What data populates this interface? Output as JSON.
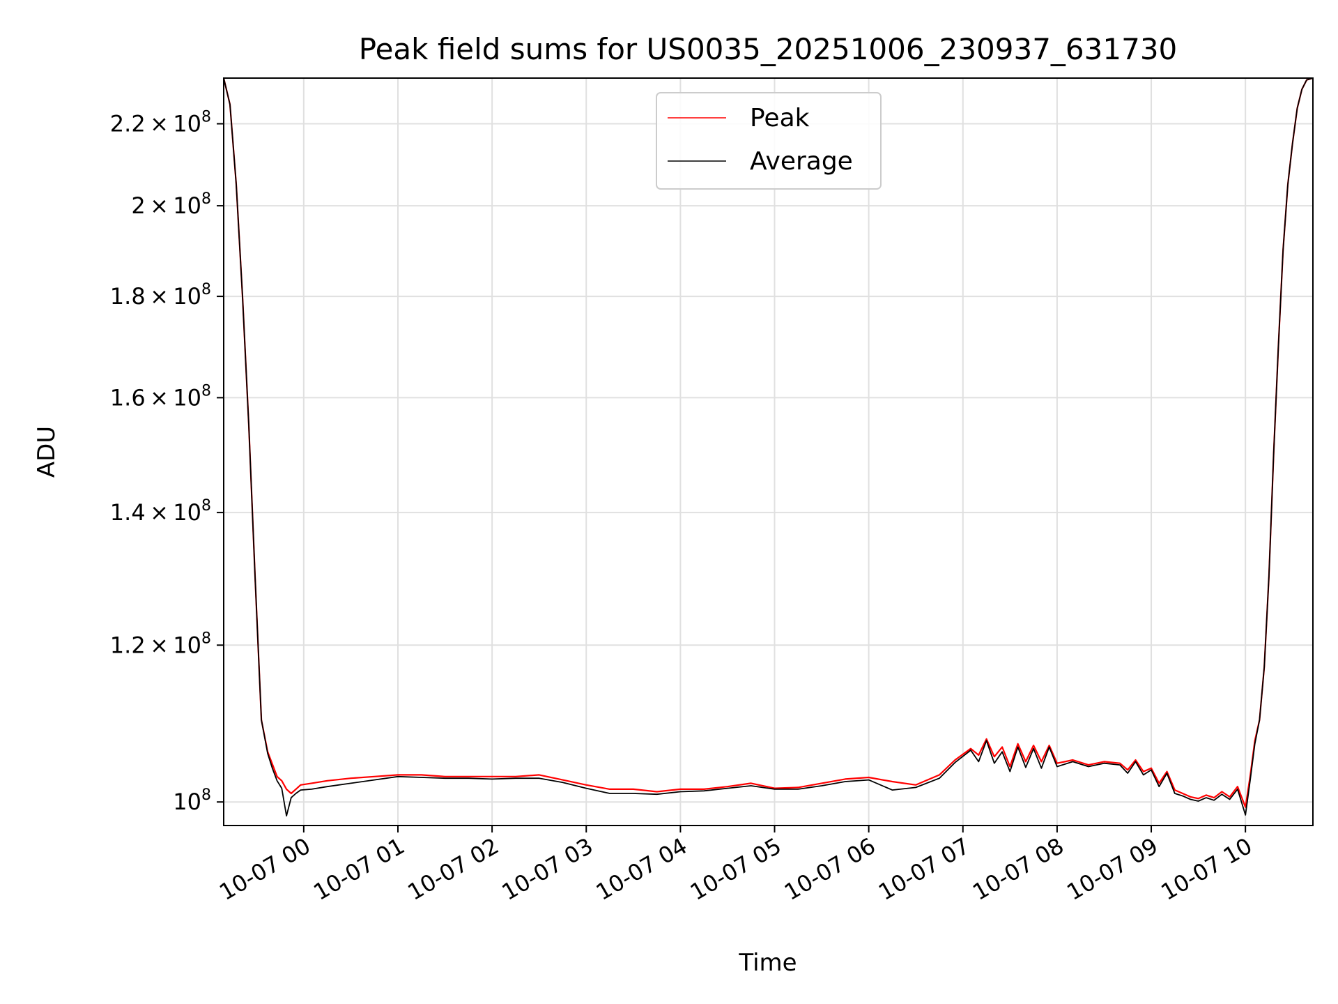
{
  "chart_data": {
    "type": "line",
    "title": "Peak field sums for US0035_20251006_230937_631730",
    "xlabel": "Time",
    "ylabel": "ADU",
    "yscale": "log",
    "ylim": [
      97300000,
      232000000
    ],
    "xlim": [
      "10-06 23:09",
      "10-07 10:43"
    ],
    "grid": true,
    "legend_position": "upper center",
    "x_ticks": [
      "10-07 00",
      "10-07 01",
      "10-07 02",
      "10-07 03",
      "10-07 04",
      "10-07 05",
      "10-07 06",
      "10-07 07",
      "10-07 08",
      "10-07 09",
      "10-07 10"
    ],
    "y_ticks": [
      {
        "value": 100000000,
        "mantissa": "",
        "exp": "8"
      },
      {
        "value": 120000000,
        "mantissa": "1.2",
        "exp": "8"
      },
      {
        "value": 140000000,
        "mantissa": "1.4",
        "exp": "8"
      },
      {
        "value": 160000000,
        "mantissa": "1.6",
        "exp": "8"
      },
      {
        "value": 180000000,
        "mantissa": "1.8",
        "exp": "8"
      },
      {
        "value": 200000000,
        "mantissa": "2",
        "exp": "8"
      },
      {
        "value": 220000000,
        "mantissa": "2.2",
        "exp": "8"
      }
    ],
    "x": [
      "10-06 23:09",
      "10-06 23:13",
      "10-06 23:17",
      "10-06 23:21",
      "10-06 23:25",
      "10-06 23:29",
      "10-06 23:33",
      "10-06 23:37",
      "10-06 23:40",
      "10-06 23:43",
      "10-06 23:46",
      "10-06 23:49",
      "10-06 23:52",
      "10-06 23:55",
      "10-06 23:58",
      "10-07 00:05",
      "10-07 00:15",
      "10-07 00:30",
      "10-07 00:45",
      "10-07 01:00",
      "10-07 01:15",
      "10-07 01:30",
      "10-07 01:45",
      "10-07 02:00",
      "10-07 02:15",
      "10-07 02:30",
      "10-07 02:45",
      "10-07 03:00",
      "10-07 03:15",
      "10-07 03:30",
      "10-07 03:45",
      "10-07 04:00",
      "10-07 04:15",
      "10-07 04:30",
      "10-07 04:45",
      "10-07 05:00",
      "10-07 05:15",
      "10-07 05:30",
      "10-07 05:45",
      "10-07 06:00",
      "10-07 06:15",
      "10-07 06:30",
      "10-07 06:45",
      "10-07 06:55",
      "10-07 07:05",
      "10-07 07:10",
      "10-07 07:15",
      "10-07 07:20",
      "10-07 07:25",
      "10-07 07:30",
      "10-07 07:35",
      "10-07 07:40",
      "10-07 07:45",
      "10-07 07:50",
      "10-07 07:55",
      "10-07 08:00",
      "10-07 08:10",
      "10-07 08:20",
      "10-07 08:30",
      "10-07 08:40",
      "10-07 08:45",
      "10-07 08:50",
      "10-07 08:55",
      "10-07 09:00",
      "10-07 09:05",
      "10-07 09:10",
      "10-07 09:15",
      "10-07 09:20",
      "10-07 09:25",
      "10-07 09:30",
      "10-07 09:35",
      "10-07 09:40",
      "10-07 09:45",
      "10-07 09:50",
      "10-07 09:55",
      "10-07 10:00",
      "10-07 10:03",
      "10-07 10:06",
      "10-07 10:09",
      "10-07 10:12",
      "10-07 10:15",
      "10-07 10:18",
      "10-07 10:21",
      "10-07 10:24",
      "10-07 10:27",
      "10-07 10:30",
      "10-07 10:33",
      "10-07 10:36",
      "10-07 10:39",
      "10-07 10:43"
    ],
    "series": [
      {
        "name": "Peak",
        "color": "#ff0000",
        "values": [
          232000000,
          225000000,
          205000000,
          180000000,
          155000000,
          130000000,
          110000000,
          106000000,
          104500000,
          103000000,
          102500000,
          101500000,
          101000000,
          101500000,
          102000000,
          102200000,
          102500000,
          102800000,
          103000000,
          103200000,
          103200000,
          103000000,
          103000000,
          103000000,
          103000000,
          103200000,
          102600000,
          102000000,
          101500000,
          101500000,
          101200000,
          101500000,
          101500000,
          101800000,
          102200000,
          101600000,
          101700000,
          102200000,
          102700000,
          102900000,
          102400000,
          102000000,
          103200000,
          105000000,
          106400000,
          105600000,
          107600000,
          105400000,
          106600000,
          104200000,
          107000000,
          104800000,
          106800000,
          104800000,
          106800000,
          104600000,
          105000000,
          104400000,
          104800000,
          104600000,
          103800000,
          105000000,
          103600000,
          104000000,
          102200000,
          103600000,
          101400000,
          101000000,
          100600000,
          100400000,
          100800000,
          100500000,
          101200000,
          100600000,
          101800000,
          99400000,
          103000000,
          107400000,
          110000000,
          117000000,
          130000000,
          150000000,
          170000000,
          190000000,
          205000000,
          215000000,
          224000000,
          229000000,
          231500000,
          232000000
        ]
      },
      {
        "name": "Average",
        "color": "#000000",
        "values": [
          232000000,
          225000000,
          205000000,
          180000000,
          155000000,
          130000000,
          110000000,
          105800000,
          104000000,
          102500000,
          101600000,
          98400000,
          100500000,
          101000000,
          101400000,
          101500000,
          101800000,
          102200000,
          102600000,
          103000000,
          102900000,
          102800000,
          102800000,
          102700000,
          102800000,
          102800000,
          102300000,
          101600000,
          101000000,
          101000000,
          100900000,
          101200000,
          101300000,
          101600000,
          101900000,
          101500000,
          101500000,
          101900000,
          102400000,
          102600000,
          101400000,
          101700000,
          102800000,
          104700000,
          106200000,
          104800000,
          107400000,
          104600000,
          106000000,
          103600000,
          106600000,
          104100000,
          106400000,
          104000000,
          106600000,
          104200000,
          104800000,
          104200000,
          104600000,
          104400000,
          103400000,
          104800000,
          103200000,
          103800000,
          101800000,
          103400000,
          101000000,
          100700000,
          100300000,
          100100000,
          100500000,
          100200000,
          100900000,
          100300000,
          101500000,
          98500000,
          102500000,
          107000000,
          110000000,
          117000000,
          130000000,
          150000000,
          170000000,
          190000000,
          205000000,
          215000000,
          224000000,
          229000000,
          231500000,
          232000000
        ]
      }
    ]
  }
}
